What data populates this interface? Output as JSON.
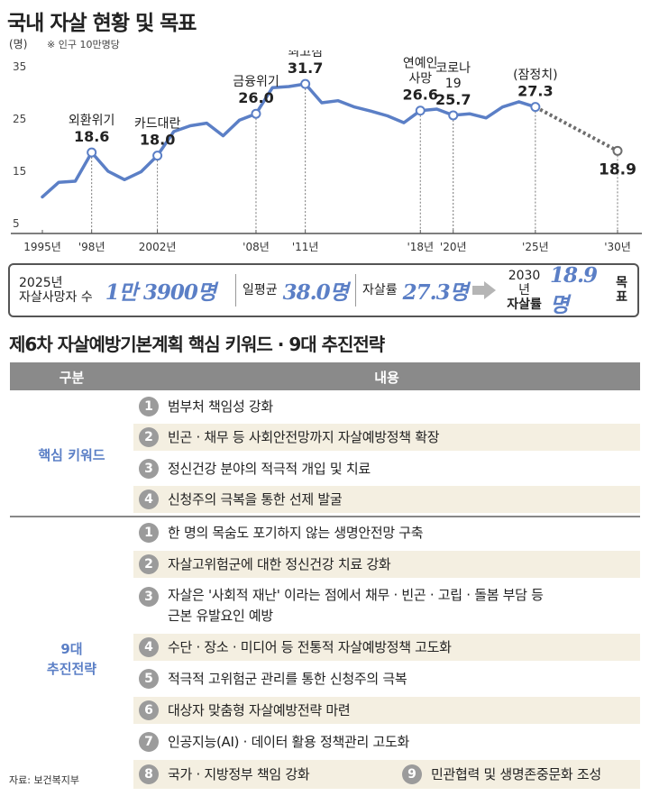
{
  "header": {
    "title": "국내 자살 현황 및 목표",
    "unit": "(명)",
    "note": "※ 인구 10만명당"
  },
  "colors": {
    "line": "#5b7fc6",
    "projection": "#6d6d6d",
    "value_text": "#5b7fc6",
    "table_header": "#8a8a8a",
    "shaded_row": "#f4efe1"
  },
  "chart_data": {
    "type": "line",
    "yticks": [
      5,
      15,
      25,
      35
    ],
    "ylim": [
      5,
      35
    ],
    "xlim": [
      1995,
      2030
    ],
    "xticks": [
      {
        "label": "1995년",
        "x": 1995
      },
      {
        "label": "'98년",
        "x": 1998
      },
      {
        "label": "2002년",
        "x": 2002
      },
      {
        "label": "'08년",
        "x": 2008
      },
      {
        "label": "'11년",
        "x": 2011
      },
      {
        "label": "'18년",
        "x": 2018
      },
      {
        "label": "'20년",
        "x": 2020
      },
      {
        "label": "'25년",
        "x": 2025
      },
      {
        "label": "'30년",
        "x": 2030
      }
    ],
    "series": [
      {
        "points": [
          [
            1995,
            10.1
          ],
          [
            1996,
            12.9
          ],
          [
            1997,
            13.1
          ],
          [
            1998,
            18.6
          ],
          [
            1999,
            15.0
          ],
          [
            2000,
            13.4
          ],
          [
            2001,
            14.9
          ],
          [
            2002,
            18.0
          ],
          [
            2003,
            22.6
          ],
          [
            2004,
            23.7
          ],
          [
            2005,
            24.2
          ],
          [
            2006,
            21.8
          ],
          [
            2007,
            24.8
          ],
          [
            2008,
            26.0
          ],
          [
            2009,
            31.0
          ],
          [
            2010,
            31.2
          ],
          [
            2011,
            31.7
          ],
          [
            2012,
            28.1
          ],
          [
            2013,
            28.5
          ],
          [
            2014,
            27.3
          ],
          [
            2015,
            26.5
          ],
          [
            2016,
            25.6
          ],
          [
            2017,
            24.3
          ],
          [
            2018,
            26.6
          ],
          [
            2019,
            26.9
          ],
          [
            2020,
            25.7
          ],
          [
            2021,
            26.0
          ],
          [
            2022,
            25.2
          ],
          [
            2023,
            27.3
          ],
          [
            2024,
            28.3
          ],
          [
            2025,
            27.3
          ]
        ]
      },
      {
        "style": "dotted",
        "points": [
          [
            2025,
            27.3
          ],
          [
            2030,
            18.9
          ]
        ]
      }
    ],
    "annotations": [
      {
        "x": 1998,
        "y": 18.6,
        "lines": [
          "외환위기",
          "18.6"
        ]
      },
      {
        "x": 2002,
        "y": 18.0,
        "lines": [
          "카드대란",
          "18.0"
        ]
      },
      {
        "x": 2008,
        "y": 26.0,
        "lines": [
          "금융위기",
          "26.0"
        ]
      },
      {
        "x": 2011,
        "y": 31.7,
        "lines": [
          "최고점",
          "31.7"
        ]
      },
      {
        "x": 2018,
        "y": 26.6,
        "lines": [
          "연예인",
          "사망",
          "26.6"
        ]
      },
      {
        "x": 2020,
        "y": 25.7,
        "lines": [
          "코로나",
          "19",
          "25.7"
        ]
      },
      {
        "x": 2025,
        "y": 27.3,
        "lines": [
          "(잠정치)",
          "27.3"
        ]
      },
      {
        "x": 2030,
        "y": 18.9,
        "lines": [
          "18.9"
        ]
      }
    ]
  },
  "summary": {
    "deaths_label_1": "2025년",
    "deaths_label_2": "자살사망자 수",
    "deaths_value": "1만 3900명",
    "daily_label": "일평균",
    "daily_value": "38.0명",
    "rate_label": "자살률",
    "rate_value": "27.3명",
    "goal_label_1": "2030년",
    "goal_label_2": "자살률",
    "goal_value": "18.9명",
    "goal_suffix": "목표"
  },
  "plan": {
    "title": "제6차 자살예방기본계획 핵심 키워드 · 9대 추진전략",
    "header_col1": "구분",
    "header_col2": "내용",
    "group1_label": "핵심 키워드",
    "group2_label_1": "9대",
    "group2_label_2": "추진전략",
    "keywords": [
      {
        "num": "1",
        "text": "범부처 책임성 강화"
      },
      {
        "num": "2",
        "text": "빈곤 · 채무 등 사회안전망까지 자살예방정책 확장"
      },
      {
        "num": "3",
        "text": "정신건강 분야의 적극적 개입 및 치료"
      },
      {
        "num": "4",
        "text": "신청주의 극복을 통한 선제 발굴"
      }
    ],
    "strategies": [
      {
        "num": "1",
        "text": "한 명의 목숨도 포기하지 않는 생명안전망 구축"
      },
      {
        "num": "2",
        "text": "자살고위험군에 대한 정신건강 치료 강화"
      },
      {
        "num": "3",
        "text": "자살은 '사회적 재난' 이라는 점에서 채무 · 빈곤 · 고립 · 돌봄 부담 등",
        "text2": "근본 유발요인 예방"
      },
      {
        "num": "4",
        "text": "수단 · 장소 · 미디어 등 전통적 자살예방정책 고도화"
      },
      {
        "num": "5",
        "text": "적극적 고위험군 관리를 통한 신청주의 극복"
      },
      {
        "num": "6",
        "text": "대상자 맞춤형 자살예방전략 마련"
      },
      {
        "num": "7",
        "text": "인공지능(AI) · 데이터 활용 정책관리 고도화"
      },
      {
        "num": "8",
        "text": "국가 · 지방정부 책임 강화"
      },
      {
        "num": "9",
        "text": "민관협력 및 생명존중문화 조성"
      }
    ]
  },
  "source": "자료: 보건복지부"
}
